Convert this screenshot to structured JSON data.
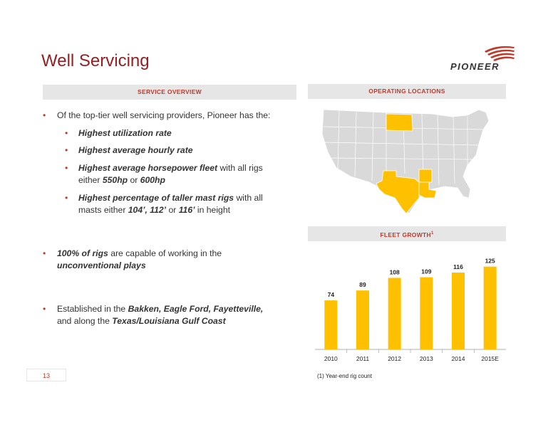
{
  "page": {
    "title": "Well Servicing",
    "logo_text": "PIONEER",
    "page_number": "13"
  },
  "sections": {
    "service_overview": "SERVICE OVERVIEW",
    "operating_locations": "OPERATING LOCATIONS",
    "fleet_growth": "FLEET GROWTH",
    "fleet_growth_sup": "1"
  },
  "bullets": {
    "b1_text": "Of the top-tier well servicing providers, Pioneer has the:",
    "sub1": "Highest utilization rate",
    "sub2": "Highest average hourly rate",
    "sub3_bold": "Highest average horsepower fleet",
    "sub3_a": " with all rigs either ",
    "sub3_b": "550hp",
    "sub3_c": " or ",
    "sub3_d": "600hp",
    "sub4_bold": "Highest percentage of taller mast rigs",
    "sub4_a": " with all masts either ",
    "sub4_b": "104’, 112’",
    "sub4_c": " or ",
    "sub4_d": "116’",
    "sub4_e": " in height",
    "b2_bold": "100% of rigs",
    "b2_a": " are capable of working in the ",
    "b2_b": "unconventional plays",
    "b3_a": "Established in the ",
    "b3_b": "Bakken, Eagle Ford, Fayetteville,",
    "b3_c": " and along the ",
    "b3_d": "Texas/Louisiana Gulf Coast"
  },
  "map": {
    "highlighted_states": [
      "North Dakota",
      "Texas",
      "Arkansas",
      "Louisiana"
    ],
    "highlight_color": "#ffc000",
    "base_color": "#d9d9d9"
  },
  "chart_data": {
    "type": "bar",
    "categories": [
      "2010",
      "2011",
      "2012",
      "2013",
      "2014",
      "2015E"
    ],
    "values": [
      74,
      89,
      108,
      109,
      116,
      125
    ],
    "bar_color": "#ffc000",
    "ylim": [
      0,
      130
    ],
    "footnote": "(1) Year-end rig count"
  }
}
